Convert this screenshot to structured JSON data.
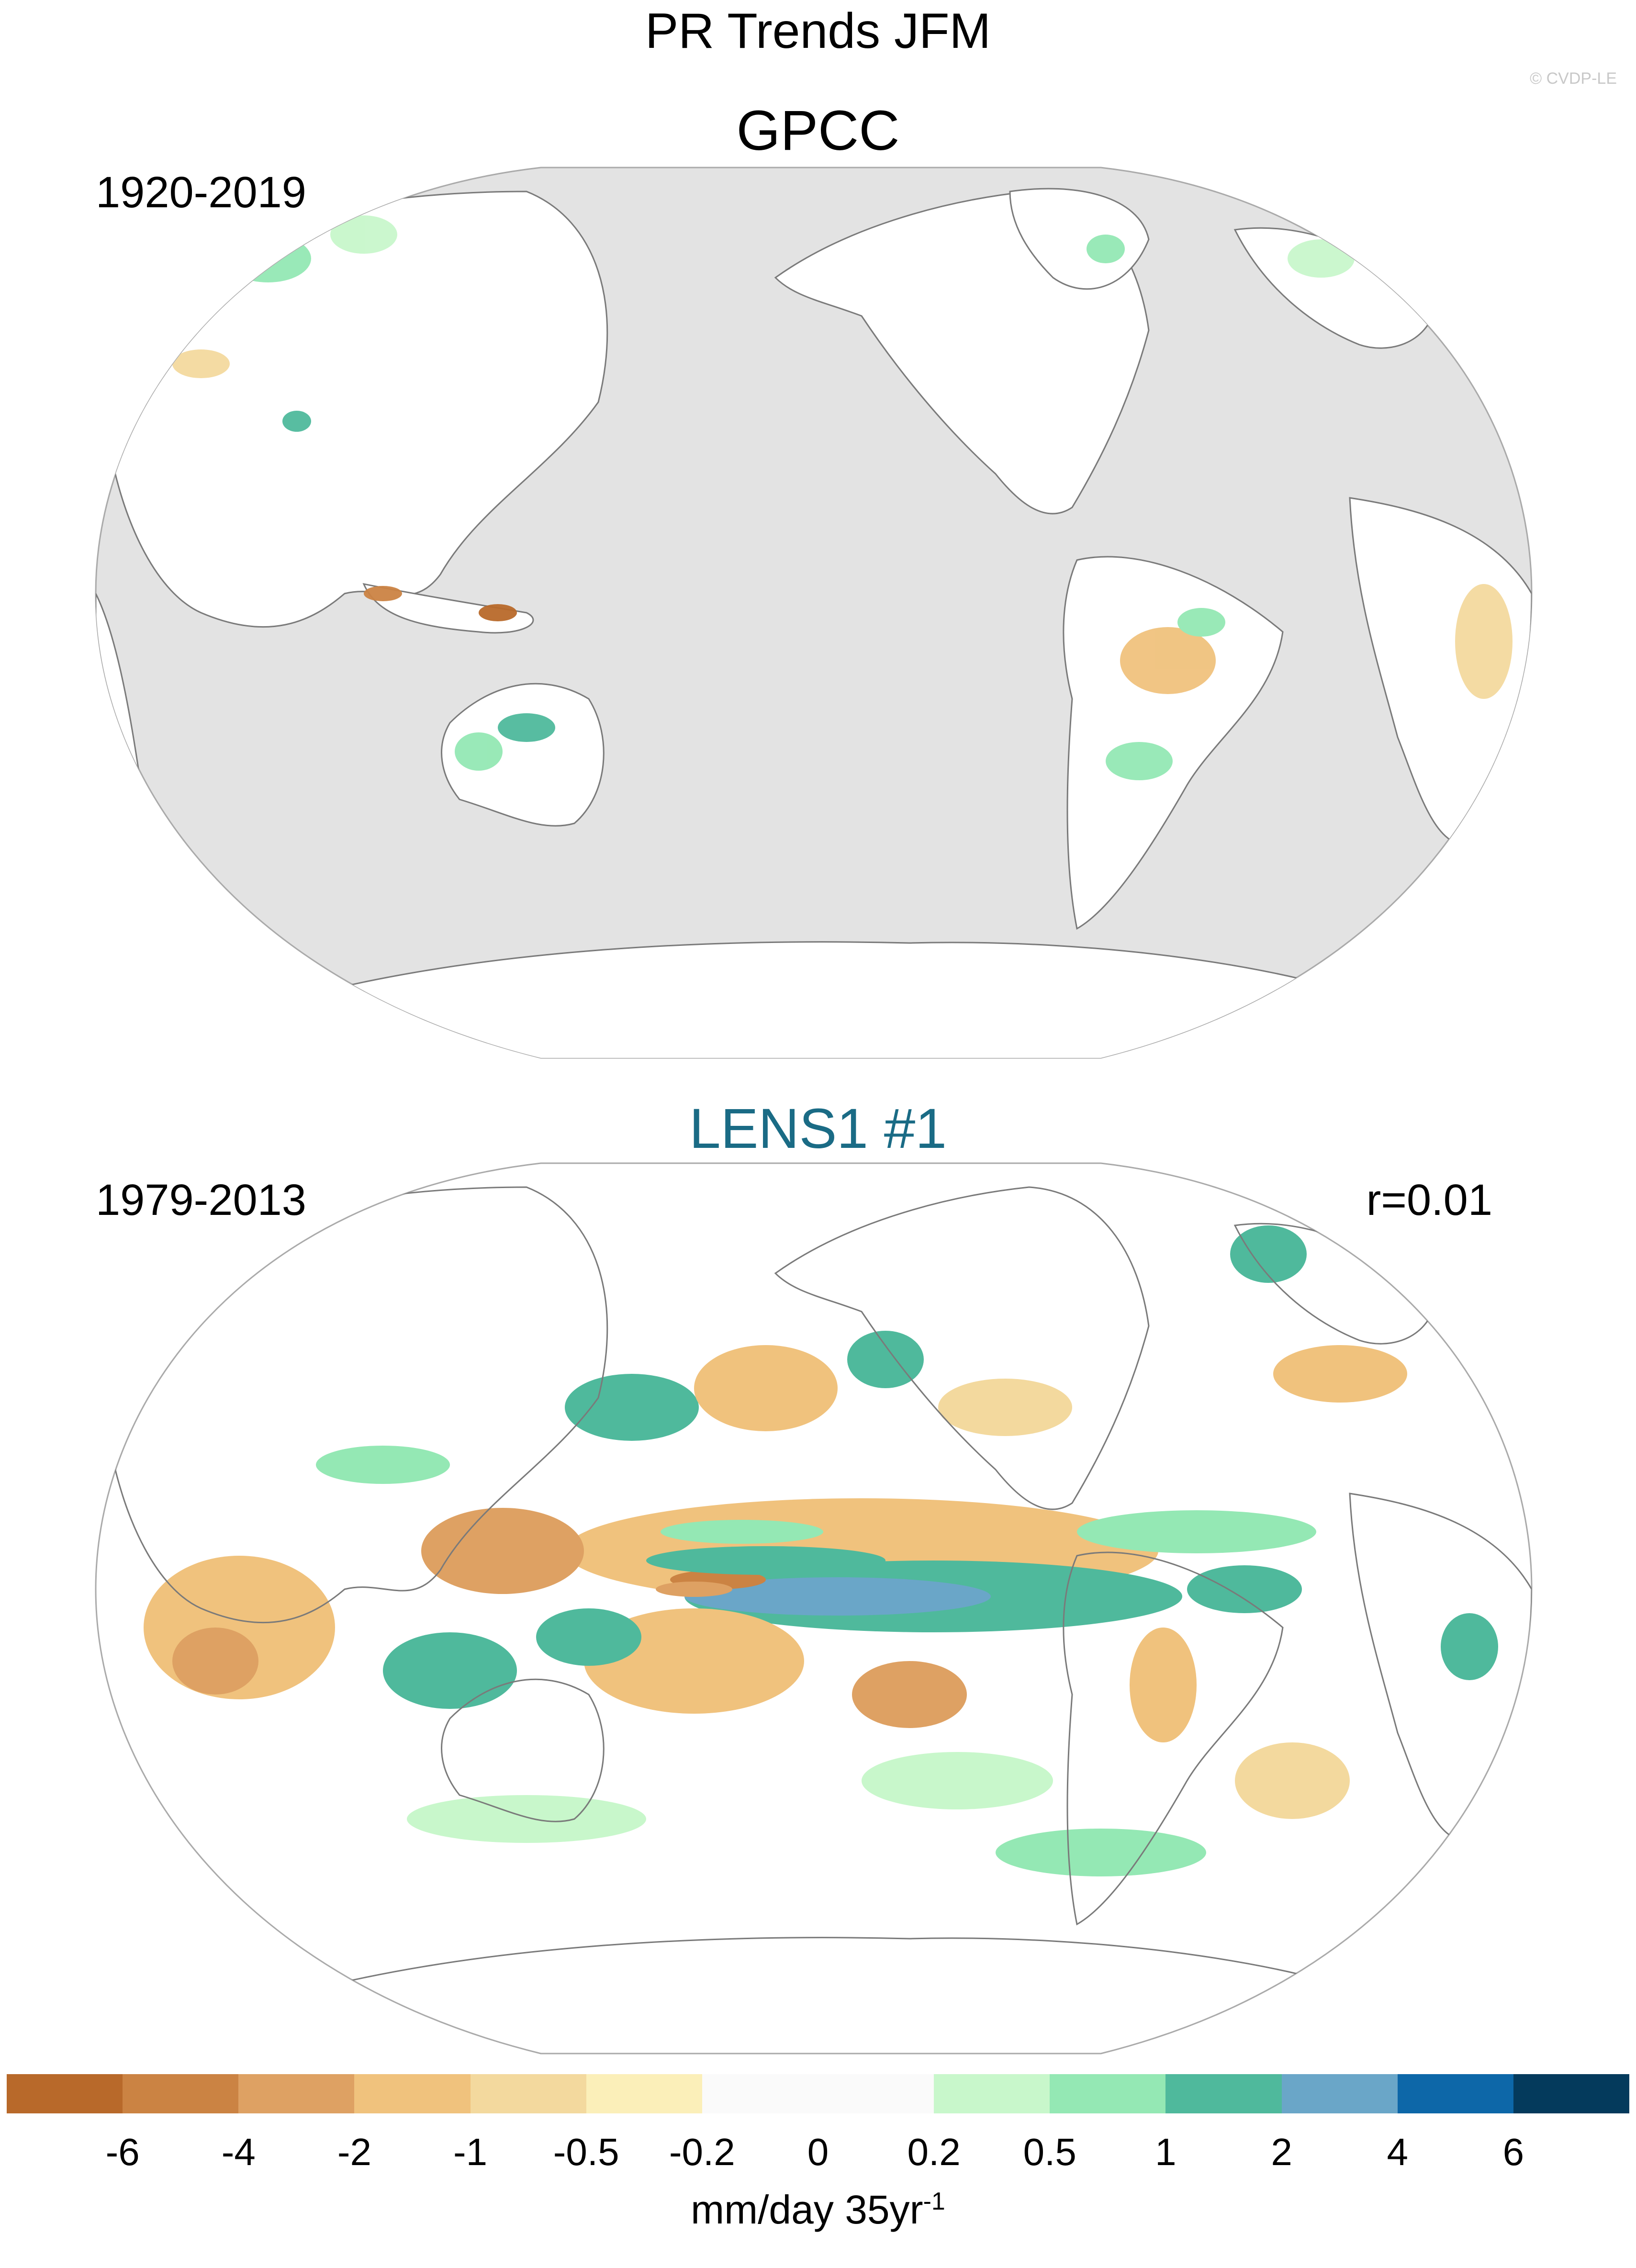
{
  "title": "PR Trends JFM",
  "copyright": "© CVDP-LE",
  "panels": [
    {
      "name": "GPCC",
      "period": "1920-2019",
      "correlation": ""
    },
    {
      "name": "LENS1 #1",
      "period": "1979-2013",
      "correlation": "r=0.01"
    }
  ],
  "colorbar": {
    "colors": [
      "#b8692a",
      "#cb8343",
      "#dea163",
      "#f0c27d",
      "#f3d99e",
      "#fbefb9",
      "#fafafa",
      "#fafafa",
      "#c8f7cb",
      "#94e8b4",
      "#4fb99c",
      "#6aa6c8",
      "#0d67a8",
      "#043a5c"
    ],
    "ticks": [
      "-6",
      "-4",
      "-2",
      "-1",
      "-0.5",
      "-0.2",
      "0",
      "0.2",
      "0.5",
      "1",
      "2",
      "4",
      "6"
    ],
    "units": "mm/day 35yr",
    "units_sup": "-1"
  },
  "colors": {
    "ocean_masked": "#e3e3e3",
    "land": "#ffffff",
    "coast": "#7a7a7a",
    "model_title": "#1a6b85"
  }
}
